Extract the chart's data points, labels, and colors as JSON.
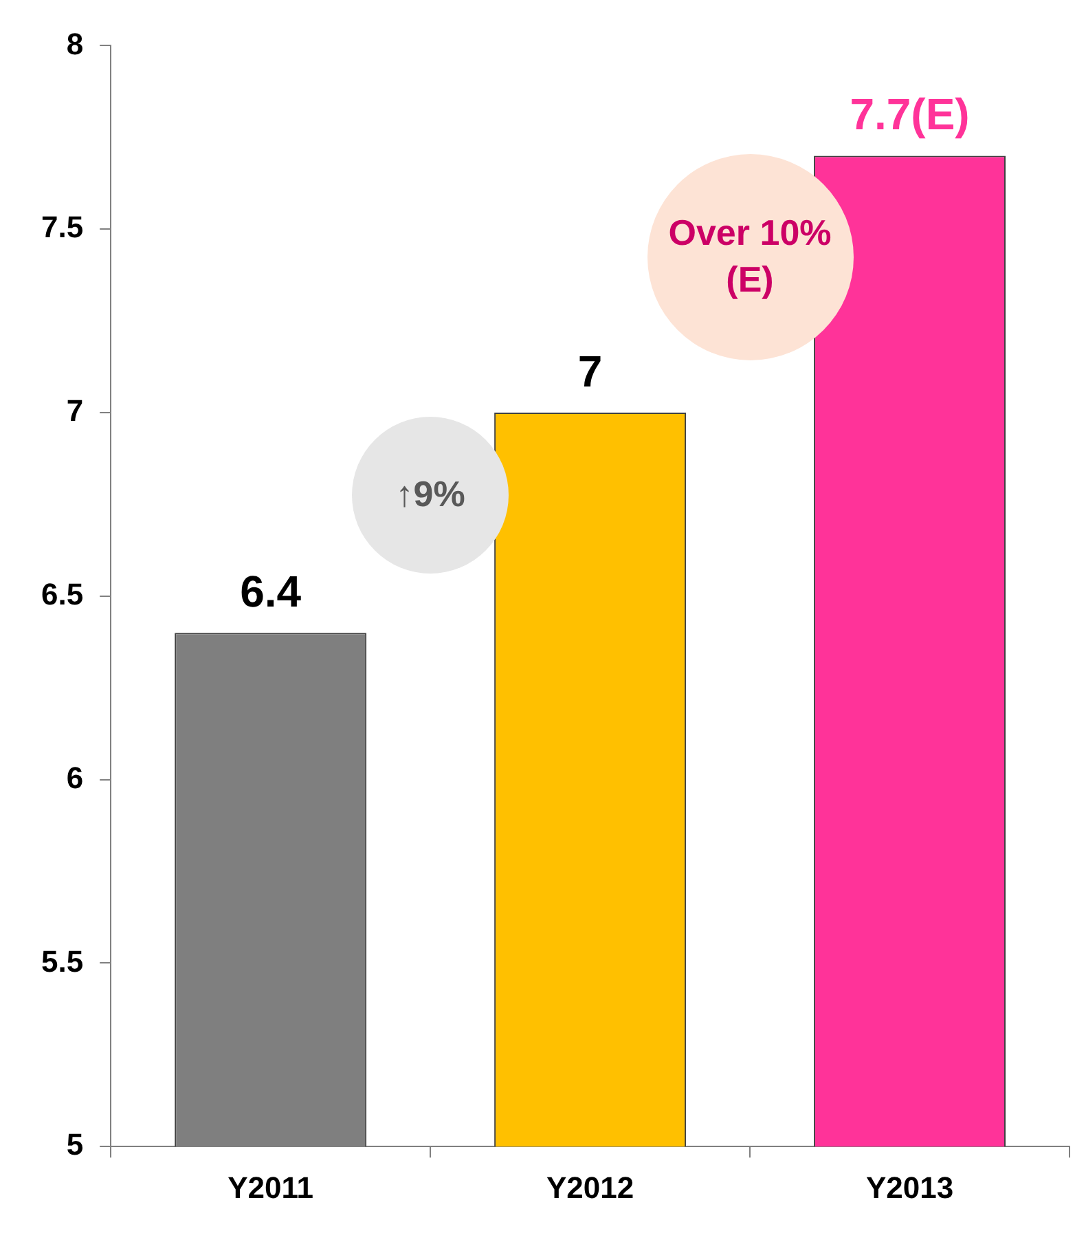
{
  "chart_data": {
    "type": "bar",
    "categories": [
      "Y2011",
      "Y2012",
      "Y2013"
    ],
    "values": [
      6.4,
      7,
      7.7
    ],
    "colors": [
      "#7f7f7f",
      "#ffc000",
      "#ff3399"
    ],
    "value_labels": [
      "6.4",
      "7",
      "7.7(E)"
    ],
    "ylim": [
      5,
      8
    ],
    "yticks": [
      5,
      5.5,
      6,
      6.5,
      7,
      7.5,
      8
    ],
    "grid": false,
    "legend": false,
    "annotations": [
      "↑9%",
      "Over 10%(E)"
    ]
  }
}
